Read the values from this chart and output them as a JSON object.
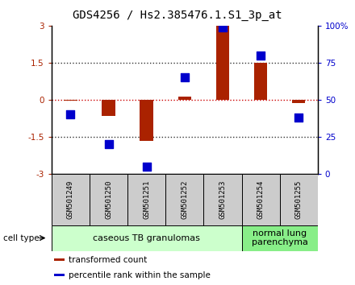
{
  "title": "GDS4256 / Hs2.385476.1.S1_3p_at",
  "samples": [
    "GSM501249",
    "GSM501250",
    "GSM501251",
    "GSM501252",
    "GSM501253",
    "GSM501254",
    "GSM501255"
  ],
  "transformed_counts": [
    -0.05,
    -0.65,
    -1.65,
    0.12,
    3.0,
    1.5,
    -0.12
  ],
  "percentile_ranks": [
    40,
    20,
    5,
    65,
    99,
    80,
    38
  ],
  "ylim_left": [
    -3,
    3
  ],
  "yticks_left": [
    -3,
    -1.5,
    0,
    1.5,
    3
  ],
  "yticks_right": [
    0,
    25,
    50,
    75,
    100
  ],
  "bar_color": "#aa2200",
  "dot_color": "#0000cc",
  "zero_line_color": "#cc0000",
  "dotted_line_color": "#333333",
  "groups": [
    {
      "label": "caseous TB granulomas",
      "samples_idx": [
        0,
        1,
        2,
        3,
        4
      ],
      "color": "#ccffcc"
    },
    {
      "label": "normal lung\nparenchyma",
      "samples_idx": [
        5,
        6
      ],
      "color": "#88ee88"
    }
  ],
  "cell_type_label": "cell type",
  "legend_items": [
    {
      "color": "#aa2200",
      "label": "transformed count"
    },
    {
      "color": "#0000cc",
      "label": "percentile rank within the sample"
    }
  ],
  "bar_width": 0.35,
  "dot_size": 45,
  "title_fontsize": 10,
  "tick_fontsize": 7.5,
  "sample_fontsize": 6.5,
  "group_fontsize": 8,
  "legend_fontsize": 7.5
}
